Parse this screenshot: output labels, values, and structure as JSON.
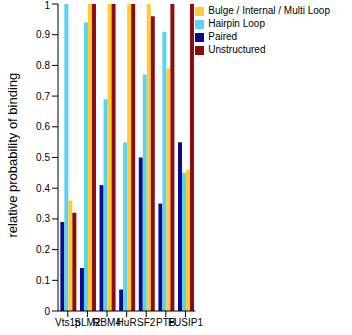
{
  "chart_data": {
    "type": "bar",
    "y_label": "relative probability of binding",
    "categories": [
      "Vts1p",
      "SLM2",
      "RBM4",
      "HuR",
      "SF2",
      "PTB",
      "FUSIP1"
    ],
    "series": [
      {
        "name": "Paired",
        "color": "#0b0b8c",
        "values": [
          0.29,
          0.14,
          0.41,
          0.07,
          0.5,
          0.35,
          0.55
        ]
      },
      {
        "name": "Hairpin Loop",
        "color": "#5ad2f4",
        "values": [
          1.0,
          0.94,
          0.69,
          0.55,
          0.77,
          0.91,
          0.45
        ]
      },
      {
        "name": "Bulge / Internal / Multi Loop",
        "color": "#ffcc33",
        "values": [
          0.36,
          1.0,
          1.0,
          1.0,
          1.0,
          0.79,
          0.46
        ]
      },
      {
        "name": "Unstructured",
        "color": "#8c0d0d",
        "values": [
          0.32,
          1.0,
          1.0,
          1.0,
          0.96,
          1.0,
          1.0
        ]
      }
    ],
    "ylim": [
      0,
      1
    ],
    "yticks": [
      0,
      0.1,
      0.2,
      0.3,
      0.4,
      0.5,
      0.6,
      0.7,
      0.8,
      0.9,
      1
    ],
    "legend": "upper right",
    "grid": false
  }
}
